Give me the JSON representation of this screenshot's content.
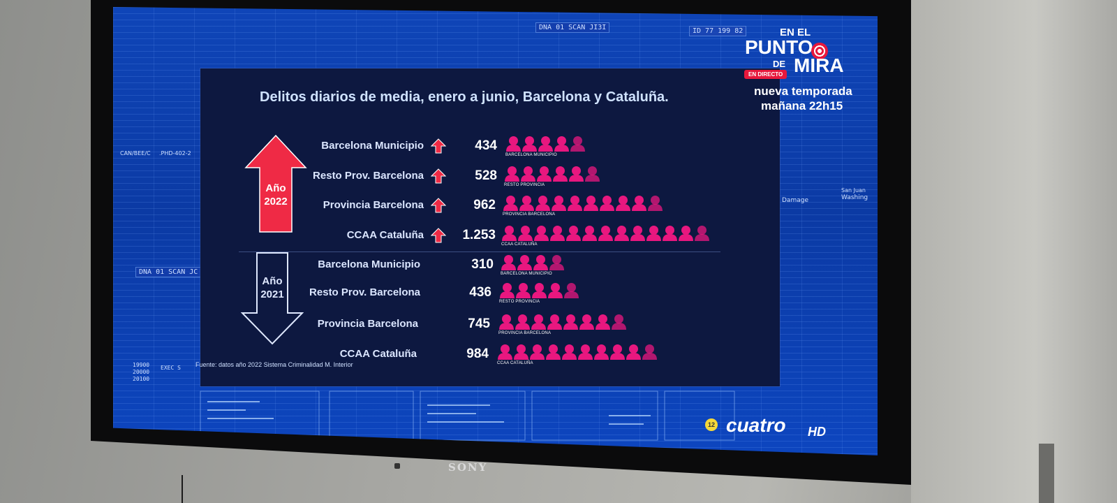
{
  "chart_data": {
    "type": "bar",
    "title": "Delitos diarios de media, enero a junio, Barcelona y Cataluña.",
    "groups": [
      {
        "label": "Año 2022",
        "trend": "up",
        "rows": [
          {
            "label": "Barcelona Municipio",
            "value": 434,
            "value_text": "434",
            "caption": "BARCELONA MUNICIPIO"
          },
          {
            "label": "Resto Prov. Barcelona",
            "value": 528,
            "value_text": "528",
            "caption": "RESTO PROVINCIA"
          },
          {
            "label": "Provincia Barcelona",
            "value": 962,
            "value_text": "962",
            "caption": "PROVINCIA BARCELONA"
          },
          {
            "label": "CCAA Cataluña",
            "value": 1253,
            "value_text": "1.253",
            "caption": "CCAA CATALUÑA"
          }
        ]
      },
      {
        "label": "Año 2021",
        "trend": "down",
        "rows": [
          {
            "label": "Barcelona Municipio",
            "value": 310,
            "value_text": "310",
            "caption": "BARCELONA MUNICIPIO"
          },
          {
            "label": "Resto Prov. Barcelona",
            "value": 436,
            "value_text": "436",
            "caption": "RESTO PROVINCIA"
          },
          {
            "label": "Provincia Barcelona",
            "value": 745,
            "value_text": "745",
            "caption": "PROVINCIA BARCELONA"
          },
          {
            "label": "CCAA Cataluña",
            "value": 984,
            "value_text": "984",
            "caption": "CCAA CATALUÑA"
          }
        ]
      }
    ],
    "source": "Fuente: datos año 2022 Sistema Criminalidad M. Interior"
  },
  "year_2022": {
    "line1": "Año",
    "line2": "2022"
  },
  "year_2021": {
    "line1": "Año",
    "line2": "2021"
  },
  "branding": {
    "en_el": "EN EL",
    "punto": "PUNTO",
    "de": "DE",
    "mira": "MIRA",
    "en_directo": "EN DIRECTO",
    "promo_line1": "nueva temporada",
    "promo_line2": "mañana 22h15",
    "channel": "cuatro",
    "hd": "HD",
    "age_rating": "12"
  },
  "tv": {
    "brand": "SONY"
  },
  "screen_decor": {
    "dna_top": "DNA 01 SCAN JI3I",
    "id_top": "ID 77 199 82",
    "dna_left": "DNA 01 SCAN JC",
    "left_code": "CAN/BEE/C",
    "left_code2": ".PHD-402-2",
    "ticker_numbers": [
      "19900",
      "20000",
      "20100"
    ],
    "exec_label": "EXEC S",
    "damage_label": "Damage",
    "washington": "Washing",
    "san_juan": "San Juan"
  },
  "colors": {
    "accent_red": "#ef2a45",
    "person_pink": "#e8177f",
    "panel_bg": "#0d1840",
    "screen_blue": "#0f45b8"
  }
}
